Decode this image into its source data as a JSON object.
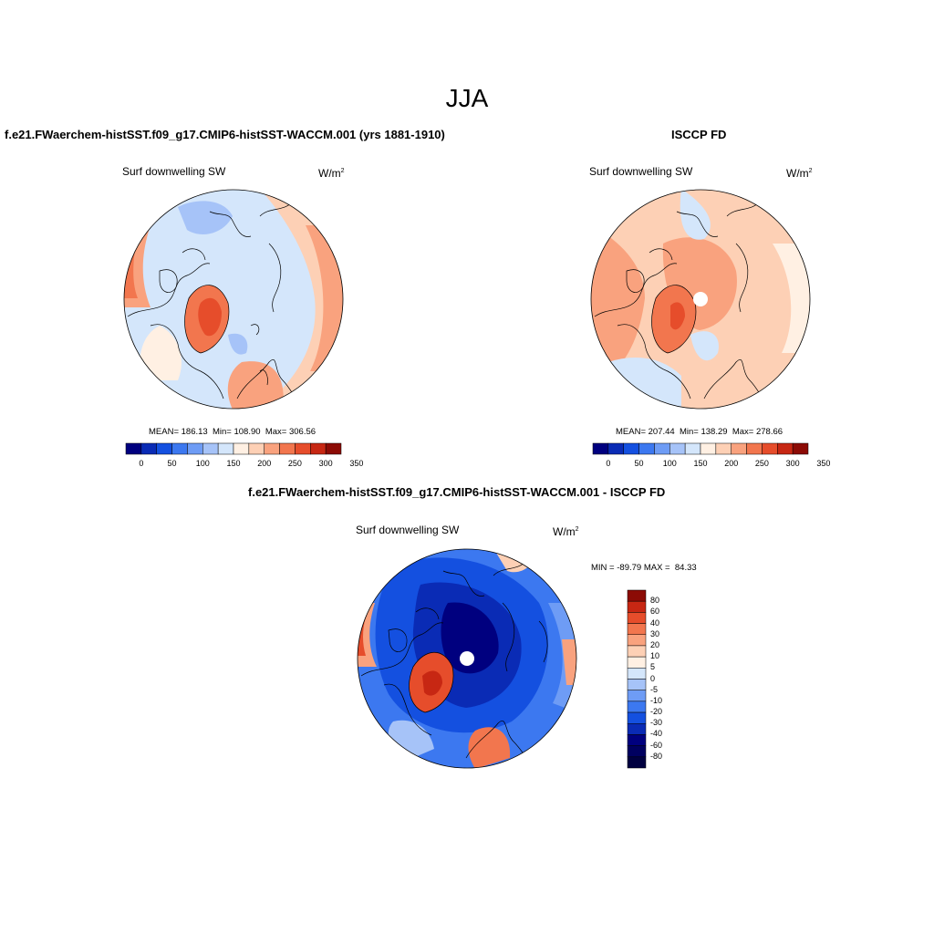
{
  "figure": {
    "season": "JJA"
  },
  "panels": [
    {
      "title": "f.e21.FWaerchem-histSST.f09_g17.CMIP6-histSST-WACCM.001 (yrs 1881-1910)",
      "variable": "Surf downwelling SW",
      "units_base": "W/m",
      "units_exp": "2",
      "stats": {
        "mean_label": "MEAN=",
        "mean": "186.13",
        "min_label": "Min=",
        "min": "108.90",
        "max_label": "Max=",
        "max": "306.56"
      },
      "colorbar_labels": [
        "0",
        "50",
        "100",
        "150",
        "200",
        "250",
        "300",
        "350"
      ]
    },
    {
      "title": "ISCCP FD",
      "variable": "Surf downwelling SW",
      "units_base": "W/m",
      "units_exp": "2",
      "stats": {
        "mean_label": "MEAN=",
        "mean": "207.44",
        "min_label": "Min=",
        "min": "138.29",
        "max_label": "Max=",
        "max": "278.66"
      },
      "colorbar_labels": [
        "0",
        "50",
        "100",
        "150",
        "200",
        "250",
        "300",
        "350"
      ]
    },
    {
      "title": "f.e21.FWaerchem-histSST.f09_g17.CMIP6-histSST-WACCM.001 - ISCCP FD",
      "variable": "Surf downwelling SW",
      "units_base": "W/m",
      "units_exp": "2",
      "stats": {
        "min_label": "MIN =",
        "min": "-89.79",
        "max_label": "MAX =",
        "max": "84.33"
      },
      "colorbar_labels": [
        "80",
        "60",
        "40",
        "30",
        "20",
        "10",
        "5",
        "0",
        "-5",
        "-10",
        "-20",
        "-30",
        "-40",
        "-60",
        "-80"
      ]
    }
  ],
  "colors": {
    "abs_scale": [
      "#00007f",
      "#0a2bb5",
      "#1450e0",
      "#3c78f0",
      "#6e9cf5",
      "#a6c3f8",
      "#d4e6fb",
      "#fff0e3",
      "#fdd0b5",
      "#f9a27e",
      "#f2764e",
      "#e64d2b",
      "#c72713",
      "#8c0b05"
    ],
    "diff_scale": [
      "#8c0b05",
      "#c72713",
      "#e64d2b",
      "#f2764e",
      "#f9a27e",
      "#fdd0b5",
      "#fff0e3",
      "#d4e6fb",
      "#a6c3f8",
      "#6e9cf5",
      "#3c78f0",
      "#1450e0",
      "#0a2bb5",
      "#00007f",
      "#000060"
    ],
    "land_line": "#000000",
    "map_border": "#000000"
  },
  "icons": {
    "pole_hole": "white-circle-mask"
  }
}
